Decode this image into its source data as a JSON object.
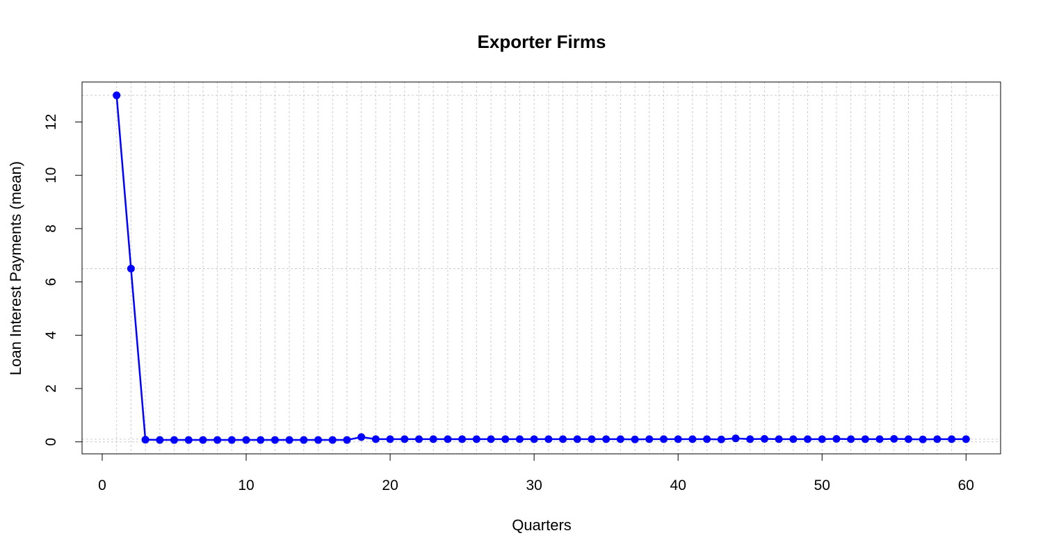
{
  "chart_data": {
    "type": "line",
    "title": "Exporter Firms",
    "xlabel": "Quarters",
    "ylabel": "Loan Interest Payments (mean)",
    "xlim": [
      -1.4,
      62.4
    ],
    "ylim": [
      -0.45,
      13.5
    ],
    "xticks": [
      0,
      10,
      20,
      30,
      40,
      50,
      60
    ],
    "yticks": [
      0,
      2,
      4,
      6,
      8,
      10,
      12
    ],
    "grid": true,
    "x_grid_at": [
      1,
      2,
      3,
      4,
      5,
      6,
      7,
      8,
      9,
      10,
      11,
      12,
      13,
      14,
      15,
      16,
      17,
      18,
      19,
      20,
      21,
      22,
      23,
      24,
      25,
      26,
      27,
      28,
      29,
      30,
      31,
      32,
      33,
      34,
      35,
      36,
      37,
      38,
      39,
      40,
      41,
      42,
      43,
      44,
      45,
      46,
      47,
      48,
      49,
      50,
      51,
      52,
      53,
      54,
      55,
      56,
      57,
      58,
      59,
      60
    ],
    "y_grid_at": [
      0,
      0.1,
      6.5,
      13
    ],
    "series": [
      {
        "color": "#0000ff",
        "x": [
          1,
          2,
          3,
          4,
          5,
          6,
          7,
          8,
          9,
          10,
          11,
          12,
          13,
          14,
          15,
          16,
          17,
          18,
          19,
          20,
          21,
          22,
          23,
          24,
          25,
          26,
          27,
          28,
          29,
          30,
          31,
          32,
          33,
          34,
          35,
          36,
          37,
          38,
          39,
          40,
          41,
          42,
          43,
          44,
          45,
          46,
          47,
          48,
          49,
          50,
          51,
          52,
          53,
          54,
          55,
          56,
          57,
          58,
          59,
          60
        ],
        "values": [
          13.0,
          6.5,
          0.08,
          0.07,
          0.07,
          0.07,
          0.07,
          0.07,
          0.07,
          0.07,
          0.07,
          0.07,
          0.07,
          0.07,
          0.07,
          0.07,
          0.07,
          0.18,
          0.1,
          0.1,
          0.1,
          0.1,
          0.1,
          0.1,
          0.1,
          0.1,
          0.1,
          0.1,
          0.1,
          0.1,
          0.1,
          0.1,
          0.1,
          0.1,
          0.1,
          0.1,
          0.09,
          0.1,
          0.1,
          0.1,
          0.1,
          0.1,
          0.09,
          0.13,
          0.1,
          0.11,
          0.1,
          0.1,
          0.1,
          0.1,
          0.11,
          0.1,
          0.1,
          0.1,
          0.11,
          0.1,
          0.09,
          0.1,
          0.1,
          0.1
        ]
      }
    ]
  }
}
